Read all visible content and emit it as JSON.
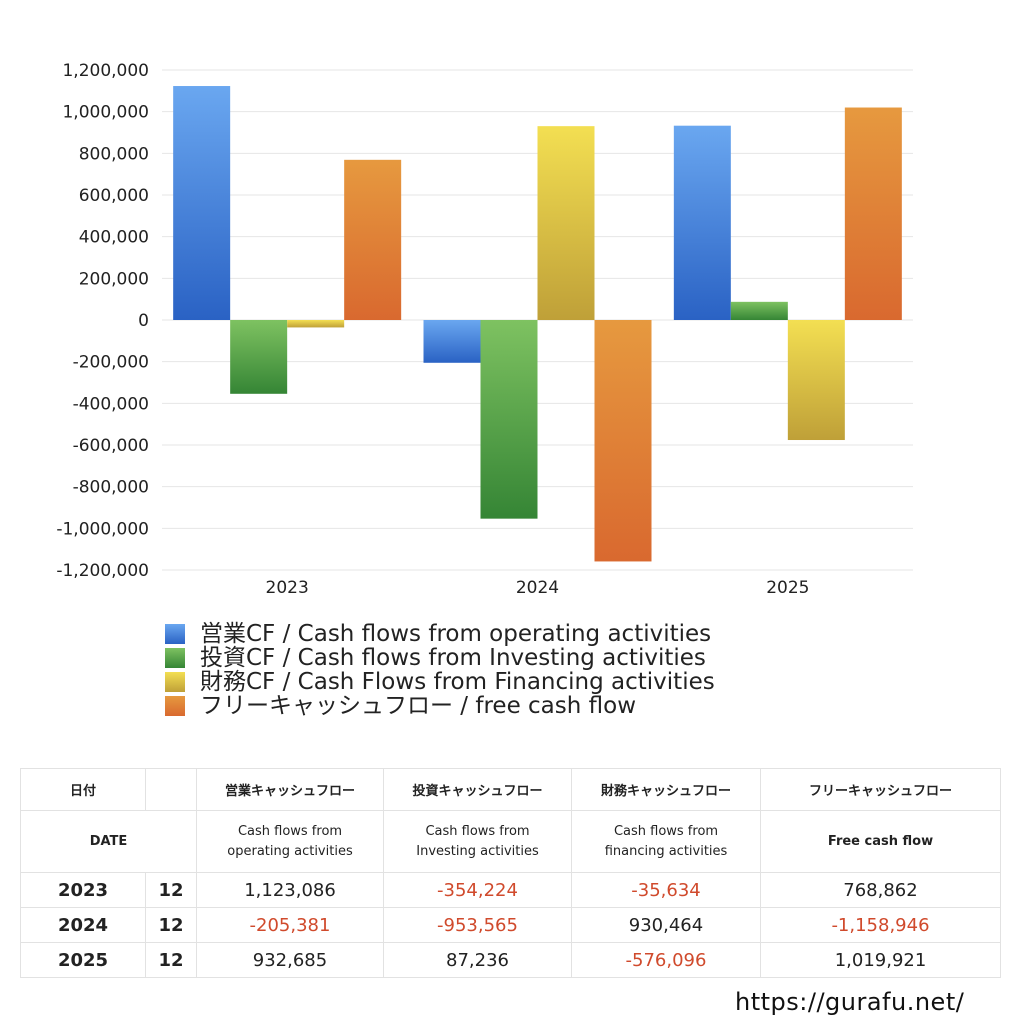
{
  "chart_data": {
    "type": "bar",
    "categories": [
      "2023",
      "2024",
      "2025"
    ],
    "series": [
      {
        "name": "営業CF / Cash flows from operating activities",
        "values": [
          1123086,
          -205381,
          932685
        ],
        "color_top": "#6aa7f0",
        "color_bottom": "#2a62c4"
      },
      {
        "name": "投資CF / Cash flows from Investing activities",
        "values": [
          -354224,
          -953565,
          87236
        ],
        "color_top": "#7ec261",
        "color_bottom": "#358535"
      },
      {
        "name": "財務CF / Cash Flows from Financing activities",
        "values": [
          -35634,
          930464,
          -576096
        ],
        "color_top": "#f3df52",
        "color_bottom": "#bfa038"
      },
      {
        "name": "フリーキャッシュフロー / free cash flow",
        "values": [
          768862,
          -1158946,
          1019921
        ],
        "color_top": "#e6993f",
        "color_bottom": "#d9692f"
      }
    ],
    "ylim": [
      -1200000,
      1200000
    ],
    "yticks": [
      "1,200,000",
      "1,000,000",
      "800,000",
      "600,000",
      "400,000",
      "200,000",
      "0",
      "-200,000",
      "-400,000",
      "-600,000",
      "-800,000",
      "-1,000,000",
      "-1,200,000"
    ],
    "grid": true,
    "legend_position": "bottom-left"
  },
  "table": {
    "header_jp": [
      "日付",
      "",
      "営業キャッシュフロー",
      "投資キャッシュフロー",
      "財務キャッシュフロー",
      "フリーキャッシュフロー"
    ],
    "header_en": {
      "date": "DATE",
      "operating": [
        "Cash flows from",
        "operating activities"
      ],
      "investing": [
        "Cash flows from",
        "Investing activities"
      ],
      "financing": [
        "Cash flows from",
        "financing activities"
      ],
      "fcf": "Free cash flow"
    },
    "rows": [
      {
        "year": "2023",
        "month": "12",
        "values": [
          "1,123,086",
          "-354,224",
          "-35,634",
          "768,862"
        ]
      },
      {
        "year": "2024",
        "month": "12",
        "values": [
          "-205,381",
          "-953,565",
          "930,464",
          "-1,158,946"
        ]
      },
      {
        "year": "2025",
        "month": "12",
        "values": [
          "932,685",
          "87,236",
          "-576,096",
          "1,019,921"
        ]
      }
    ],
    "negative_color": "#d04a2c"
  },
  "site_url": "https://gurafu.net/"
}
